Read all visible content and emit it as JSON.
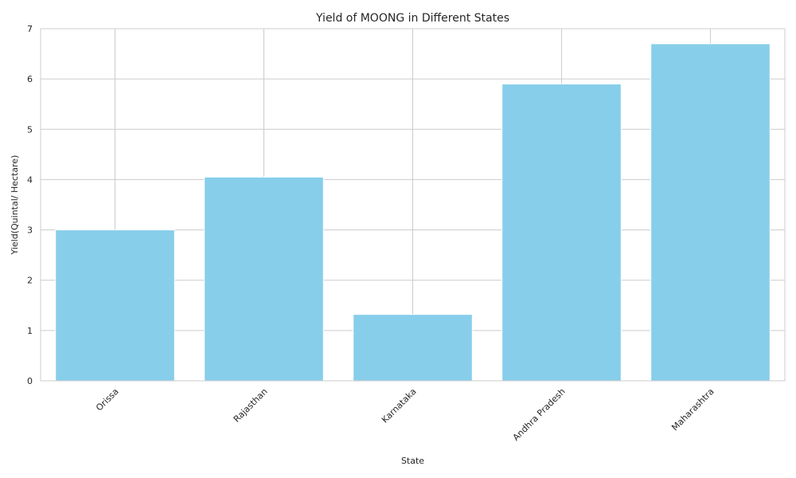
{
  "chart_data": {
    "type": "bar",
    "title": "Yield of MOONG in Different States",
    "xlabel": "State",
    "ylabel": "Yield(Quintal/ Hectare)",
    "categories": [
      "Orissa",
      "Rajasthan",
      "Karnataka",
      "Andhra Pradesh",
      "Maharashtra"
    ],
    "values": [
      3.0,
      4.05,
      1.32,
      5.9,
      6.7
    ],
    "ylim": [
      0,
      7.0
    ],
    "yticks": [
      0,
      1,
      2,
      3,
      4,
      5,
      6,
      7
    ],
    "grid": true,
    "bar_color": "#87CEEB",
    "grid_color": "#cccccc"
  }
}
